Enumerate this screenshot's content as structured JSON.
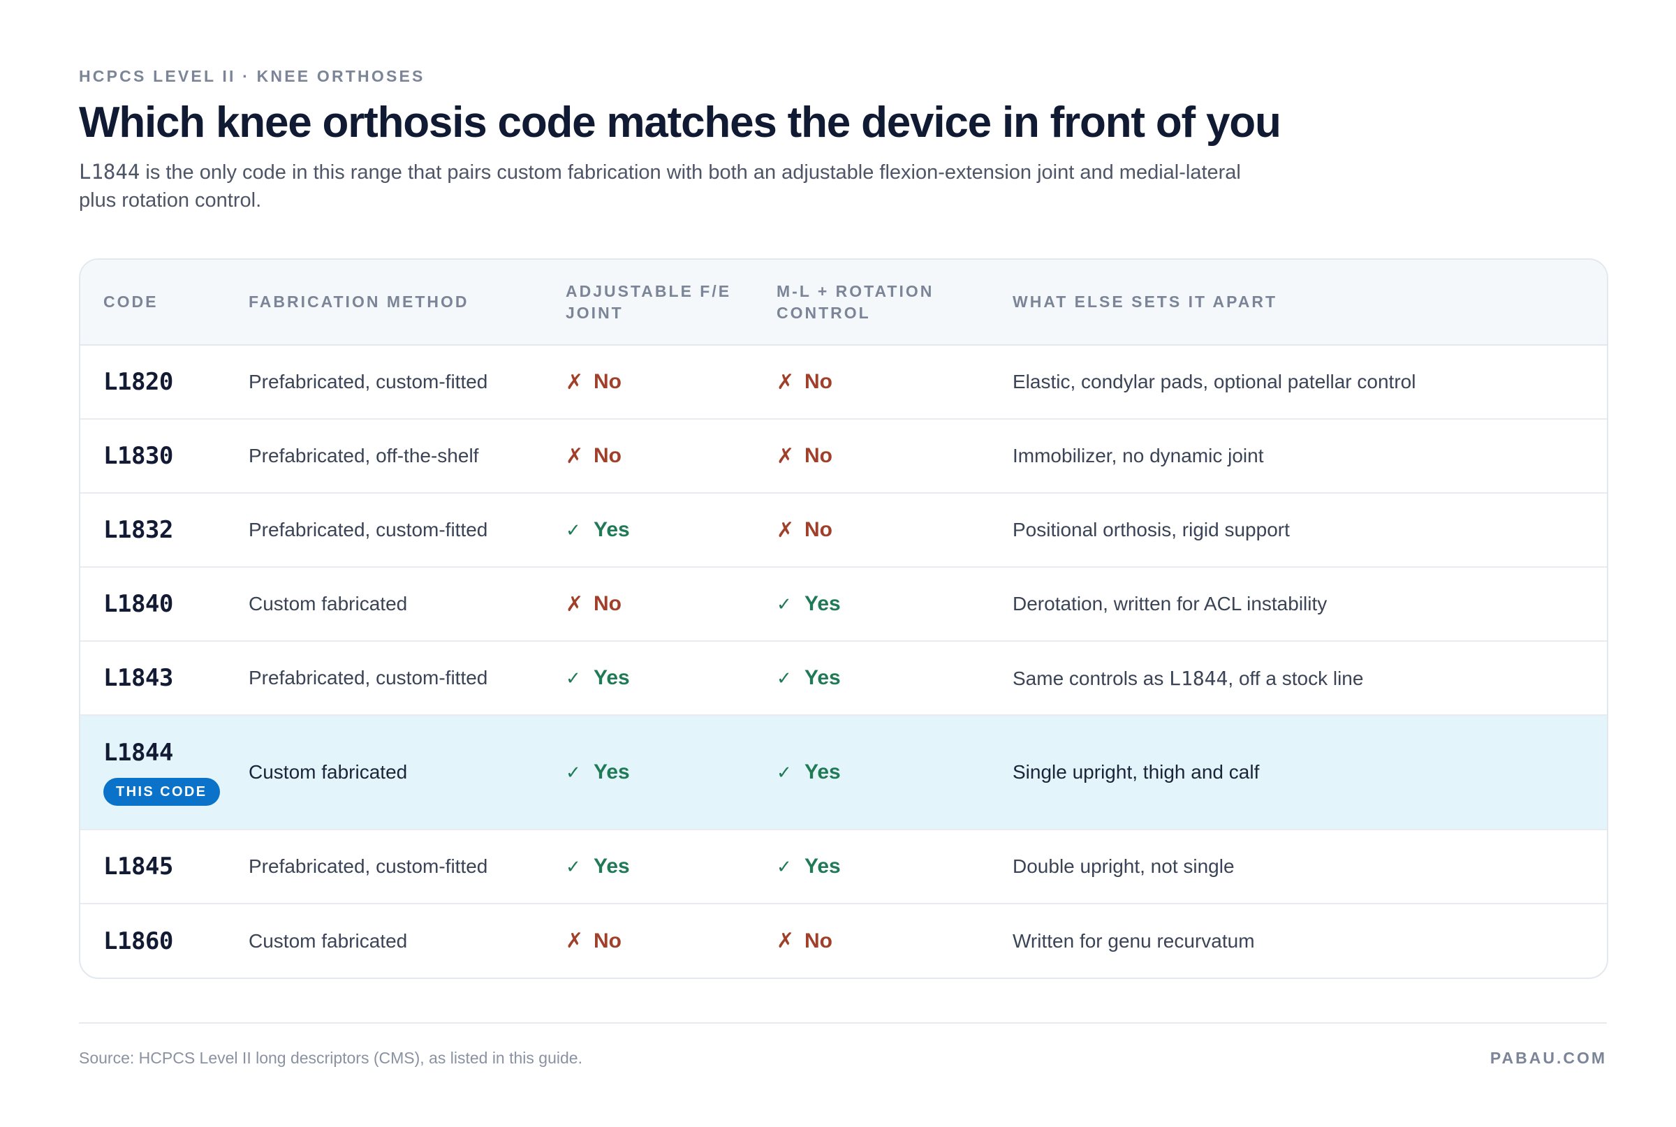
{
  "header": {
    "eyebrow": "HCPCS LEVEL II · KNEE ORTHOSES",
    "title": "Which knee orthosis code matches the device in front of you",
    "subtitle_code": "L1844",
    "subtitle_rest": " is the only code in this range that pairs custom fabrication with both an adjustable flexion-extension joint and medial-lateral plus rotation control."
  },
  "table": {
    "columns": [
      "CODE",
      "FABRICATION METHOD",
      "ADJUSTABLE F/E JOINT",
      "M-L + ROTATION CONTROL",
      "WHAT ELSE SETS IT APART"
    ],
    "yes_label": "Yes",
    "no_label": "No",
    "badge": "THIS CODE",
    "rows": [
      {
        "code": "L1820",
        "fabrication": "Prefabricated, custom-fitted",
        "fe": "No",
        "ml": "No",
        "notes": "Elastic, condylar pads, optional patellar control"
      },
      {
        "code": "L1830",
        "fabrication": "Prefabricated, off-the-shelf",
        "fe": "No",
        "ml": "No",
        "notes": "Immobilizer, no dynamic joint"
      },
      {
        "code": "L1832",
        "fabrication": "Prefabricated, custom-fitted",
        "fe": "Yes",
        "ml": "No",
        "notes": "Positional orthosis, rigid support"
      },
      {
        "code": "L1840",
        "fabrication": "Custom fabricated",
        "fe": "No",
        "ml": "Yes",
        "notes": "Derotation, written for ACL instability"
      },
      {
        "code": "L1843",
        "fabrication": "Prefabricated, custom-fitted",
        "fe": "Yes",
        "ml": "Yes",
        "notes_pre": "Same controls as ",
        "notes_code": "L1844",
        "notes_post": ", off a stock line"
      },
      {
        "code": "L1844",
        "fabrication": "Custom fabricated",
        "fe": "Yes",
        "ml": "Yes",
        "notes": "Single upright, thigh and calf",
        "highlight": true
      },
      {
        "code": "L1845",
        "fabrication": "Prefabricated, custom-fitted",
        "fe": "Yes",
        "ml": "Yes",
        "notes": "Double upright, not single"
      },
      {
        "code": "L1860",
        "fabrication": "Custom fabricated",
        "fe": "No",
        "ml": "No",
        "notes": "Written for genu recurvatum"
      }
    ]
  },
  "footer": {
    "source": "Source: HCPCS Level II long descriptors (CMS), as listed in this guide.",
    "brand": "PABAU.COM"
  },
  "colors": {
    "yes": "#1f7a55",
    "no": "#a0402a",
    "highlight_row": "#e3f5fa",
    "badge": "#0a72c8"
  },
  "icons": {
    "yes": "check-icon",
    "no": "cross-icon"
  }
}
